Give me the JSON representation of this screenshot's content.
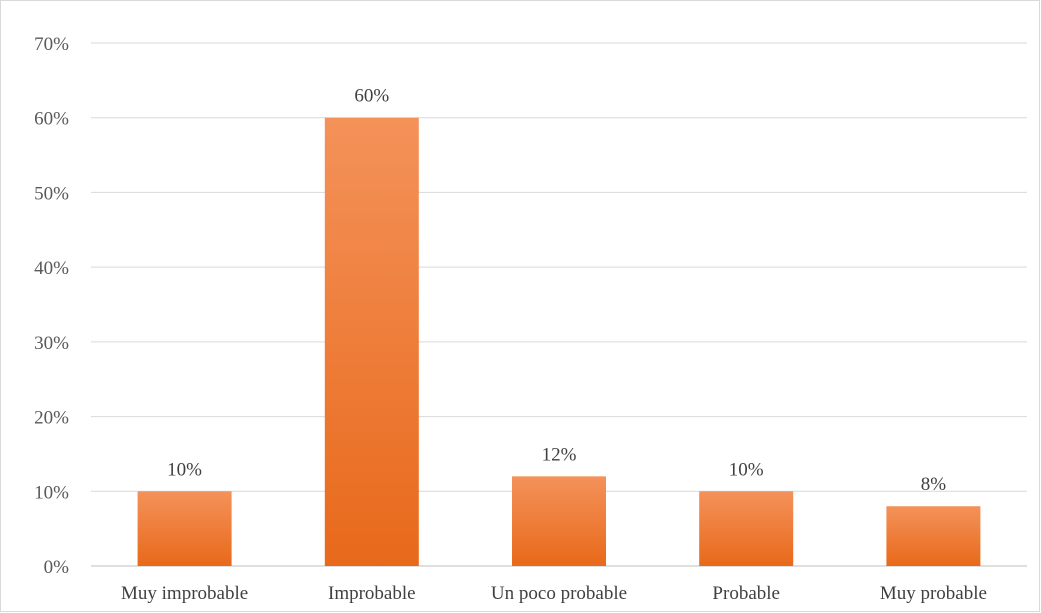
{
  "chart_data": {
    "type": "bar",
    "categories": [
      "Muy improbable",
      "Improbable",
      "Un poco probable",
      "Probable",
      "Muy probable"
    ],
    "values": [
      10,
      60,
      12,
      10,
      8
    ],
    "data_labels": [
      "10%",
      "60%",
      "12%",
      "10%",
      "8%"
    ],
    "y_ticks": [
      0,
      10,
      20,
      30,
      40,
      50,
      60,
      70
    ],
    "y_tick_labels": [
      "0%",
      "10%",
      "20%",
      "30%",
      "40%",
      "50%",
      "60%",
      "70%"
    ],
    "ylim": [
      0,
      70
    ],
    "title": "",
    "xlabel": "",
    "ylabel": "",
    "grid": true,
    "legend": "none",
    "colors": {
      "bar_top": "#f4925a",
      "bar_bottom": "#e8691a",
      "grid": "#d9d9d9",
      "axis": "#bfbfbf"
    }
  }
}
